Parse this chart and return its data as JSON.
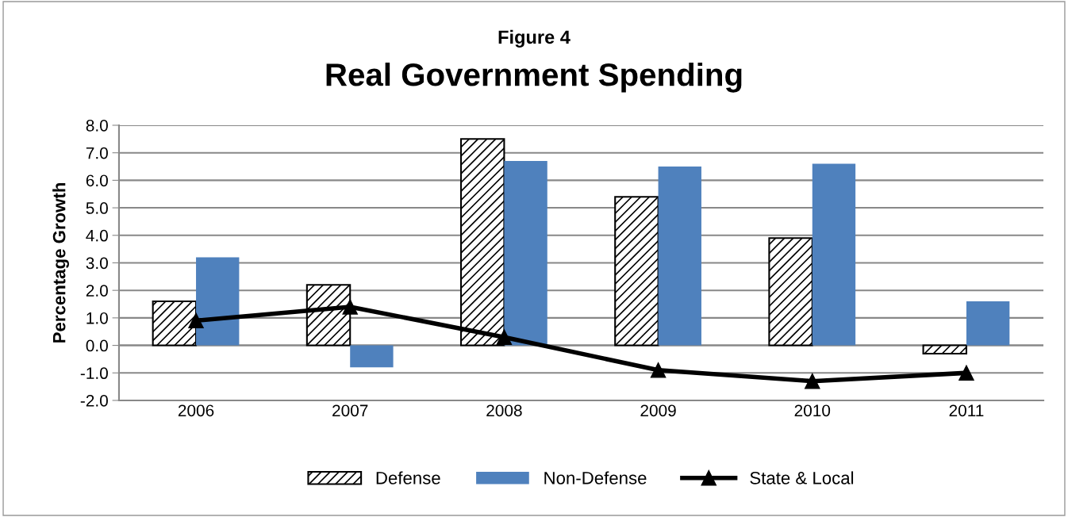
{
  "chart_data": {
    "type": "bar",
    "title": "Figure 4",
    "subtitle": "Real Government Spending",
    "ylabel": "Percentage Growth",
    "categories": [
      "2006",
      "2007",
      "2008",
      "2009",
      "2010",
      "2011"
    ],
    "series": [
      {
        "name": "Defense",
        "color": "#000000",
        "values": [
          1.6,
          2.2,
          7.5,
          5.4,
          3.9,
          -0.3
        ]
      },
      {
        "name": "Non-Defense",
        "color": "#4f81bd",
        "values": [
          3.2,
          -0.8,
          6.7,
          6.5,
          6.6,
          1.6
        ]
      },
      {
        "name": "State & Local",
        "type": "line",
        "color": "#000000",
        "marker": "triangle",
        "values": [
          0.9,
          1.4,
          0.3,
          -0.9,
          -1.3,
          -1.0
        ]
      }
    ],
    "ylim": [
      -2,
      8
    ],
    "yticks": [
      {
        "value": -2,
        "label": "-2.0"
      },
      {
        "value": -1,
        "label": "-1.0"
      },
      {
        "value": 0,
        "label": "0.0"
      },
      {
        "value": 1,
        "label": "1.0"
      },
      {
        "value": 2,
        "label": "2.0"
      },
      {
        "value": 3,
        "label": "3.0"
      },
      {
        "value": 4,
        "label": "4.0"
      },
      {
        "value": 5,
        "label": "5.0"
      },
      {
        "value": 6,
        "label": "6.0"
      },
      {
        "value": 7,
        "label": "7.0"
      },
      {
        "value": 8,
        "label": "8.0"
      }
    ],
    "grid": "y",
    "legend": "bottom"
  }
}
